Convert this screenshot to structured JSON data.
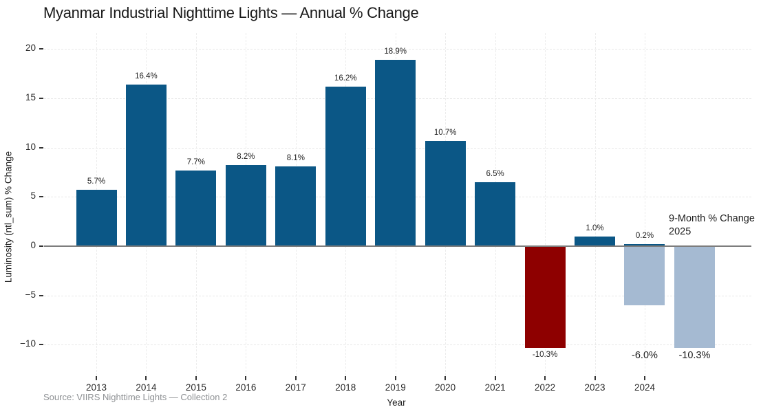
{
  "chart_data": {
    "type": "bar",
    "title": "Myanmar Industrial Nighttime Lights — Annual % Change",
    "xlabel": "Year",
    "ylabel": "Luminosity (ntl_sum) % Change",
    "source_note": "Source: VIIRS Nighttime Lights — Collection 2",
    "annotation": {
      "line1": "9-Month % Change",
      "line2": "2025"
    },
    "ylim": [
      -12.8,
      21.7
    ],
    "grid": "dashed",
    "legend": "none",
    "colors": {
      "annual_bar": "#0b5786",
      "decline_bar": "#8e0000",
      "nine_month_bar": "#a5bad2",
      "zero_line": "#7d7d7d"
    },
    "y_ticks": [
      {
        "value": 20,
        "label": "20"
      },
      {
        "value": 15,
        "label": "15"
      },
      {
        "value": 10,
        "label": "10"
      },
      {
        "value": 5,
        "label": "5"
      },
      {
        "value": 0,
        "label": "0"
      },
      {
        "value": -5,
        "label": "−5"
      },
      {
        "value": -10,
        "label": "−10"
      }
    ],
    "x_ticks": [
      {
        "value": 2013,
        "label": "2013"
      },
      {
        "value": 2014,
        "label": "2014"
      },
      {
        "value": 2015,
        "label": "2015"
      },
      {
        "value": 2016,
        "label": "2016"
      },
      {
        "value": 2017,
        "label": "2017"
      },
      {
        "value": 2018,
        "label": "2018"
      },
      {
        "value": 2019,
        "label": "2019"
      },
      {
        "value": 2020,
        "label": "2020"
      },
      {
        "value": 2021,
        "label": "2021"
      },
      {
        "value": 2022,
        "label": "2022"
      },
      {
        "value": 2023,
        "label": "2023"
      },
      {
        "value": 2024,
        "label": "2024"
      }
    ],
    "series": [
      {
        "name": "annual_pct_change",
        "color": "#0b5786",
        "label_style": "small",
        "points": [
          {
            "x": 2013,
            "y": 5.7,
            "label": "5.7%"
          },
          {
            "x": 2014,
            "y": 16.4,
            "label": "16.4%"
          },
          {
            "x": 2015,
            "y": 7.7,
            "label": "7.7%"
          },
          {
            "x": 2016,
            "y": 8.2,
            "label": "8.2%"
          },
          {
            "x": 2017,
            "y": 8.1,
            "label": "8.1%"
          },
          {
            "x": 2018,
            "y": 16.2,
            "label": "16.2%"
          },
          {
            "x": 2019,
            "y": 18.9,
            "label": "18.9%"
          },
          {
            "x": 2020,
            "y": 10.7,
            "label": "10.7%"
          },
          {
            "x": 2021,
            "y": 6.5,
            "label": "6.5%"
          },
          {
            "x": 2022,
            "y": -10.3,
            "label": "-10.3%",
            "color": "#8e0000"
          },
          {
            "x": 2023,
            "y": 1.0,
            "label": "1.0%"
          },
          {
            "x": 2024,
            "y": 0.2,
            "label": "0.2%"
          }
        ]
      },
      {
        "name": "nine_month_pct_change",
        "color": "#a5bad2",
        "label_style": "large",
        "labels_at_series_min": true,
        "points": [
          {
            "x": 2024,
            "y": -6.0,
            "label": "-6.0%"
          },
          {
            "x": 2025,
            "y": -10.3,
            "label": "-10.3%"
          }
        ]
      }
    ]
  }
}
